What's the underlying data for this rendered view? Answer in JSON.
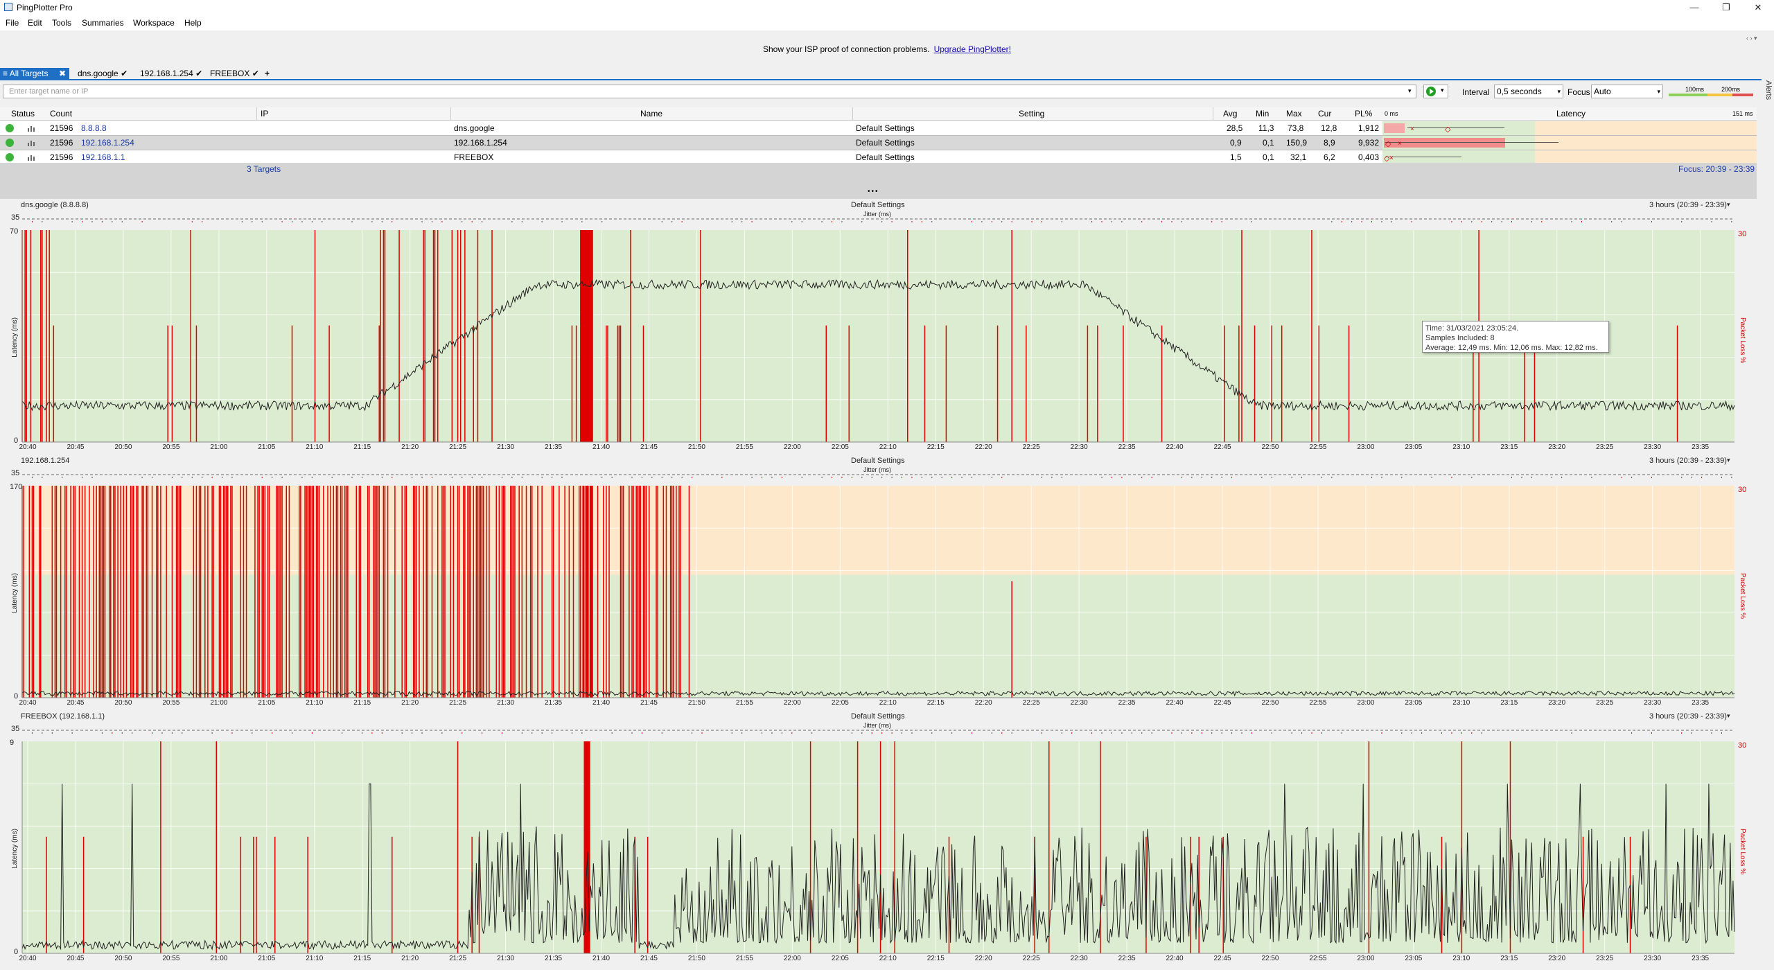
{
  "window": {
    "title": "PingPlotter Pro",
    "min": "—",
    "max": "❐",
    "close": "✕"
  },
  "menu": [
    "File",
    "Edit",
    "Tools",
    "Summaries",
    "Workspace",
    "Help"
  ],
  "promo": {
    "text": "Show your ISP proof of connection problems.",
    "link": "Upgrade PingPlotter!"
  },
  "tabs": {
    "all": "All Targets",
    "items": [
      "dns.google",
      "192.168.1.254",
      "FREEBOX"
    ],
    "add": "+"
  },
  "toolbar": {
    "search_placeholder": "Enter target name or IP",
    "interval_label": "Interval",
    "interval_value": "0,5 seconds",
    "focus_label": "Focus",
    "focus_value": "Auto",
    "scale_100": "100ms",
    "scale_200": "200ms",
    "alerts": "Alerts"
  },
  "table": {
    "headers": {
      "status": "Status",
      "count": "Count",
      "ip": "IP",
      "name": "Name",
      "setting": "Setting",
      "avg": "Avg",
      "min": "Min",
      "max": "Max",
      "cur": "Cur",
      "pl": "PL%",
      "lat_min": "0 ms",
      "latency": "Latency",
      "lat_max": "151 ms"
    },
    "rows": [
      {
        "count": "21596",
        "ip": "8.8.8.8",
        "name": "dns.google",
        "setting": "Default Settings",
        "avg": "28,5",
        "min": "11,3",
        "max": "73,8",
        "cur": "12,8",
        "pl": "1,912"
      },
      {
        "count": "21596",
        "ip": "192.168.1.254",
        "name": "192.168.1.254",
        "setting": "Default Settings",
        "avg": "0,9",
        "min": "0,1",
        "max": "150,9",
        "cur": "8,9",
        "pl": "9,932"
      },
      {
        "count": "21596",
        "ip": "192.168.1.1",
        "name": "FREEBOX",
        "setting": "Default Settings",
        "avg": "1,5",
        "min": "0,1",
        "max": "32,1",
        "cur": "6,2",
        "pl": "0,403"
      }
    ],
    "footer": {
      "targets": "3 Targets",
      "focus": "Focus: 20:39 - 23:39"
    }
  },
  "graphs": [
    {
      "title": "dns.google (8.8.8.8)",
      "setting": "Default Settings",
      "range": "3 hours (20:39 - 23:39)",
      "jitter_top": "35",
      "jitter_label": "Jitter (ms)",
      "ymax": "70",
      "ymin": "0",
      "ylabel": "Latency (ms)",
      "pl_max": "30",
      "pl_label": "Packet Loss %"
    },
    {
      "title": "192.168.1.254",
      "setting": "Default Settings",
      "range": "3 hours (20:39 - 23:39)",
      "jitter_top": "35",
      "jitter_label": "Jitter (ms)",
      "ymax": "170",
      "ymin": "0",
      "ylabel": "Latency (ms)",
      "pl_max": "30",
      "pl_label": "Packet Loss %"
    },
    {
      "title": "FREEBOX (192.168.1.1)",
      "setting": "Default Settings",
      "range": "3 hours (20:39 - 23:39)",
      "jitter_top": "35",
      "jitter_label": "Jitter (ms)",
      "ymax": "9",
      "ymin": "0",
      "ylabel": "Latency (ms)",
      "pl_max": "30",
      "pl_label": "Packet Loss %"
    }
  ],
  "time_ticks": [
    "20:40",
    "20:45",
    "20:50",
    "20:55",
    "21:00",
    "21:05",
    "21:10",
    "21:15",
    "21:20",
    "21:25",
    "21:30",
    "21:35",
    "21:40",
    "21:45",
    "21:50",
    "21:55",
    "22:00",
    "22:05",
    "22:10",
    "22:15",
    "22:20",
    "22:25",
    "22:30",
    "22:35",
    "22:40",
    "22:45",
    "22:50",
    "22:55",
    "23:00",
    "23:05",
    "23:10",
    "23:15",
    "23:20",
    "23:25",
    "23:30",
    "23:35"
  ],
  "tooltip": {
    "line1": "Time: 31/03/2021 23:05:24.",
    "line2": "Samples Included: 8",
    "line3": "Average: 12,49 ms. Min: 12,06 ms. Max: 12,82 ms."
  },
  "colors": {
    "accent": "#1f6fc5",
    "good_zone": "#dcecd0",
    "warn_zone": "#fde8cc",
    "loss": "#e00000",
    "status_ok": "#3cb43c"
  }
}
